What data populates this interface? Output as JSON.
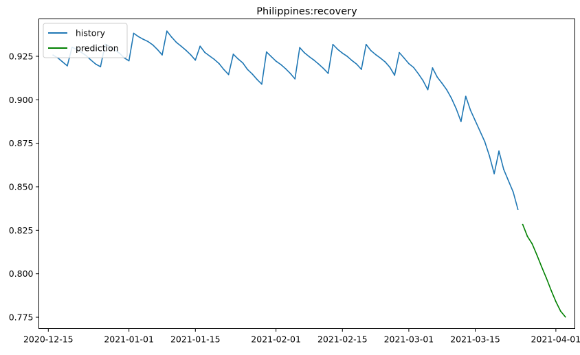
{
  "chart_data": {
    "type": "line",
    "title": "Philippines:recovery",
    "xlabel": "",
    "ylabel": "",
    "x_domain": [
      "2020-12-13",
      "2021-04-05"
    ],
    "ylim": [
      0.7685,
      0.9465
    ],
    "x_ticks": [
      "2020-12-15",
      "2021-01-01",
      "2021-01-15",
      "2021-02-01",
      "2021-02-15",
      "2021-03-01",
      "2021-03-15",
      "2021-04-01"
    ],
    "y_ticks": [
      0.775,
      0.8,
      0.825,
      0.85,
      0.875,
      0.9,
      0.925
    ],
    "y_tick_labels": [
      "0.775",
      "0.800",
      "0.825",
      "0.850",
      "0.875",
      "0.900",
      "0.925"
    ],
    "grid": false,
    "legend_position": "top-left",
    "series": [
      {
        "name": "history",
        "color": "#1f77b4",
        "points": [
          [
            "2020-12-16",
            0.9257
          ],
          [
            "2020-12-17",
            0.9241
          ],
          [
            "2020-12-18",
            0.9218
          ],
          [
            "2020-12-19",
            0.9195
          ],
          [
            "2020-12-20",
            0.9302
          ],
          [
            "2020-12-21",
            0.929
          ],
          [
            "2020-12-22",
            0.9272
          ],
          [
            "2020-12-23",
            0.9253
          ],
          [
            "2020-12-24",
            0.9228
          ],
          [
            "2020-12-25",
            0.9205
          ],
          [
            "2020-12-26",
            0.919
          ],
          [
            "2020-12-27",
            0.9319
          ],
          [
            "2020-12-28",
            0.9305
          ],
          [
            "2020-12-29",
            0.9286
          ],
          [
            "2020-12-30",
            0.9268
          ],
          [
            "2020-12-31",
            0.9241
          ],
          [
            "2021-01-01",
            0.9224
          ],
          [
            "2021-01-02",
            0.9382
          ],
          [
            "2021-01-03",
            0.9363
          ],
          [
            "2021-01-04",
            0.9348
          ],
          [
            "2021-01-05",
            0.9335
          ],
          [
            "2021-01-06",
            0.9316
          ],
          [
            "2021-01-07",
            0.9289
          ],
          [
            "2021-01-08",
            0.9258
          ],
          [
            "2021-01-09",
            0.9395
          ],
          [
            "2021-01-10",
            0.936
          ],
          [
            "2021-01-11",
            0.933
          ],
          [
            "2021-01-12",
            0.9308
          ],
          [
            "2021-01-13",
            0.9285
          ],
          [
            "2021-01-14",
            0.9259
          ],
          [
            "2021-01-15",
            0.9228
          ],
          [
            "2021-01-16",
            0.9308
          ],
          [
            "2021-01-17",
            0.9272
          ],
          [
            "2021-01-18",
            0.9252
          ],
          [
            "2021-01-19",
            0.9232
          ],
          [
            "2021-01-20",
            0.9208
          ],
          [
            "2021-01-21",
            0.9174
          ],
          [
            "2021-01-22",
            0.9145
          ],
          [
            "2021-01-23",
            0.9262
          ],
          [
            "2021-01-24",
            0.9235
          ],
          [
            "2021-01-25",
            0.9212
          ],
          [
            "2021-01-26",
            0.9174
          ],
          [
            "2021-01-27",
            0.9148
          ],
          [
            "2021-01-28",
            0.9117
          ],
          [
            "2021-01-29",
            0.909
          ],
          [
            "2021-01-30",
            0.9275
          ],
          [
            "2021-01-31",
            0.9248
          ],
          [
            "2021-02-01",
            0.9222
          ],
          [
            "2021-02-02",
            0.9203
          ],
          [
            "2021-02-03",
            0.9179
          ],
          [
            "2021-02-04",
            0.9152
          ],
          [
            "2021-02-05",
            0.912
          ],
          [
            "2021-02-06",
            0.93
          ],
          [
            "2021-02-07",
            0.927
          ],
          [
            "2021-02-08",
            0.9248
          ],
          [
            "2021-02-09",
            0.9228
          ],
          [
            "2021-02-10",
            0.9205
          ],
          [
            "2021-02-11",
            0.918
          ],
          [
            "2021-02-12",
            0.9152
          ],
          [
            "2021-02-13",
            0.9318
          ],
          [
            "2021-02-14",
            0.929
          ],
          [
            "2021-02-15",
            0.9268
          ],
          [
            "2021-02-16",
            0.925
          ],
          [
            "2021-02-17",
            0.9226
          ],
          [
            "2021-02-18",
            0.9205
          ],
          [
            "2021-02-19",
            0.9175
          ],
          [
            "2021-02-20",
            0.9318
          ],
          [
            "2021-02-21",
            0.9283
          ],
          [
            "2021-02-22",
            0.926
          ],
          [
            "2021-02-23",
            0.924
          ],
          [
            "2021-02-24",
            0.9218
          ],
          [
            "2021-02-25",
            0.9187
          ],
          [
            "2021-02-26",
            0.9141
          ],
          [
            "2021-02-27",
            0.9271
          ],
          [
            "2021-02-28",
            0.924
          ],
          [
            "2021-03-01",
            0.9208
          ],
          [
            "2021-03-02",
            0.9186
          ],
          [
            "2021-03-03",
            0.915
          ],
          [
            "2021-03-04",
            0.911
          ],
          [
            "2021-03-05",
            0.9058
          ],
          [
            "2021-03-06",
            0.9183
          ],
          [
            "2021-03-07",
            0.913
          ],
          [
            "2021-03-08",
            0.9095
          ],
          [
            "2021-03-09",
            0.9057
          ],
          [
            "2021-03-10",
            0.9008
          ],
          [
            "2021-03-11",
            0.8948
          ],
          [
            "2021-03-12",
            0.8875
          ],
          [
            "2021-03-13",
            0.902
          ],
          [
            "2021-03-14",
            0.894
          ],
          [
            "2021-03-15",
            0.888
          ],
          [
            "2021-03-16",
            0.882
          ],
          [
            "2021-03-17",
            0.876
          ],
          [
            "2021-03-18",
            0.8677
          ],
          [
            "2021-03-19",
            0.8575
          ],
          [
            "2021-03-20",
            0.8705
          ],
          [
            "2021-03-21",
            0.86
          ],
          [
            "2021-03-22",
            0.8535
          ],
          [
            "2021-03-23",
            0.847
          ],
          [
            "2021-03-24",
            0.837
          ]
        ]
      },
      {
        "name": "prediction",
        "color": "#008000",
        "points": [
          [
            "2021-03-25",
            0.8284
          ],
          [
            "2021-03-26",
            0.8215
          ],
          [
            "2021-03-27",
            0.8172
          ],
          [
            "2021-03-28",
            0.8108
          ],
          [
            "2021-03-29",
            0.804
          ],
          [
            "2021-03-30",
            0.7975
          ],
          [
            "2021-03-31",
            0.7905
          ],
          [
            "2021-04-01",
            0.784
          ],
          [
            "2021-04-02",
            0.7785
          ],
          [
            "2021-04-03",
            0.7752
          ]
        ]
      }
    ]
  }
}
